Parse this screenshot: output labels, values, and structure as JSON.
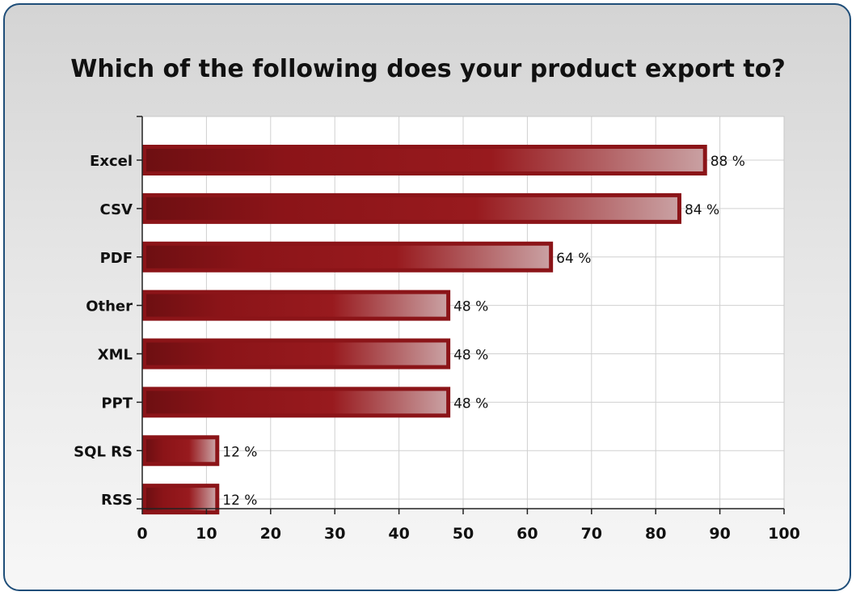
{
  "chart_data": {
    "type": "bar",
    "orientation": "horizontal",
    "title": "Which of the following does your product export to?",
    "categories": [
      "Excel",
      "CSV",
      "PDF",
      "Other",
      "XML",
      "PPT",
      "SQL RS",
      "RSS"
    ],
    "values": [
      88,
      84,
      64,
      48,
      48,
      48,
      12,
      12
    ],
    "value_suffix": " %",
    "xlabel": "",
    "ylabel": "",
    "xlim": [
      0,
      100
    ],
    "xticks": [
      0,
      10,
      20,
      30,
      40,
      50,
      60,
      70,
      80,
      90,
      100
    ],
    "grid": true,
    "bar_color": "#8b1418",
    "bar_highlight": "#c9a0a2"
  }
}
